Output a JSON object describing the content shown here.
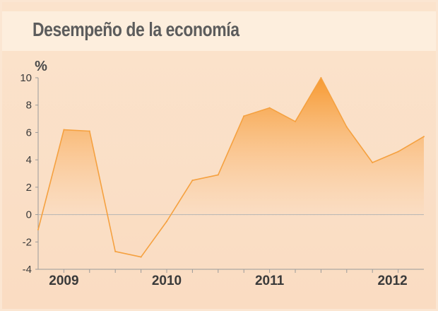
{
  "title": "Desempeño de la economía",
  "chart_data": {
    "type": "area",
    "title": "Desempeño de la economía",
    "ylabel": "%",
    "ylim": [
      -4,
      10
    ],
    "yticks": [
      10,
      8,
      6,
      4,
      2,
      0,
      -2,
      -4
    ],
    "xtick_labels": [
      "2009",
      "2010",
      "2011",
      "2012"
    ],
    "x_range": [
      0,
      15
    ],
    "x_tick_positions": [
      1,
      5,
      9,
      14
    ],
    "x_minor_ticks": [
      1,
      2,
      3,
      4,
      5,
      6,
      7,
      8,
      9,
      10,
      11,
      12,
      13,
      14
    ],
    "series": [
      {
        "values": [
          -1.1,
          6.2,
          6.1,
          -2.7,
          -3.1,
          -0.5,
          2.5,
          2.9,
          7.2,
          7.8,
          6.8,
          10.0,
          6.4,
          3.8,
          4.6,
          5.7
        ]
      }
    ],
    "colors": {
      "line": "#f5a140",
      "fill_top": "#f79a32",
      "fill_bottom": "#fbdcc0",
      "zero_line": "#b5b5b5"
    },
    "grid": false
  }
}
